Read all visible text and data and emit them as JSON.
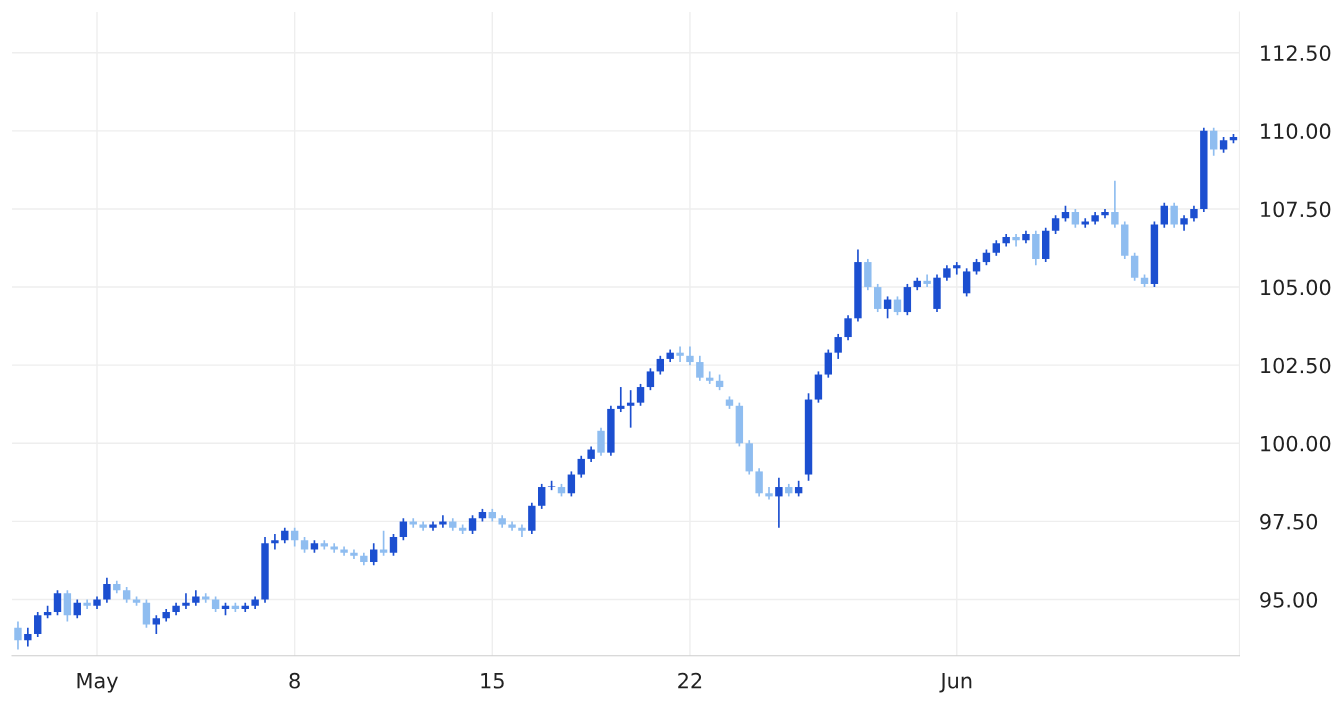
{
  "chart_data": {
    "type": "candlestick",
    "categories": [
      null,
      null,
      null,
      null,
      null,
      null,
      null,
      null,
      "May",
      null,
      null,
      null,
      null,
      null,
      null,
      null,
      null,
      null,
      null,
      null,
      null,
      null,
      null,
      null,
      null,
      null,
      null,
      null,
      "8",
      null,
      null,
      null,
      null,
      null,
      null,
      null,
      null,
      null,
      null,
      null,
      null,
      null,
      null,
      null,
      null,
      null,
      null,
      null,
      "15",
      null,
      null,
      null,
      null,
      null,
      null,
      null,
      null,
      null,
      null,
      null,
      null,
      null,
      null,
      null,
      null,
      null,
      null,
      null,
      "22",
      null,
      null,
      null,
      null,
      null,
      null,
      null,
      null,
      null,
      null,
      null,
      null,
      null,
      null,
      null,
      null,
      null,
      null,
      null,
      null,
      null,
      null,
      null,
      null,
      null,
      null,
      "Jun",
      null,
      null,
      null,
      null,
      null,
      null,
      null,
      null,
      null,
      null,
      null,
      null,
      null,
      null,
      null,
      null,
      null,
      null,
      null,
      null,
      null,
      null,
      null,
      null,
      null,
      null,
      null,
      null
    ],
    "ohlc": [
      [
        94.1,
        94.3,
        93.4,
        93.7
      ],
      [
        93.7,
        94.1,
        93.5,
        93.9
      ],
      [
        93.9,
        94.6,
        93.8,
        94.5
      ],
      [
        94.5,
        94.8,
        94.4,
        94.6
      ],
      [
        94.6,
        95.3,
        94.5,
        95.2
      ],
      [
        95.2,
        95.3,
        94.3,
        94.5
      ],
      [
        94.5,
        95.0,
        94.4,
        94.9
      ],
      [
        94.9,
        95.0,
        94.7,
        94.8
      ],
      [
        94.8,
        95.1,
        94.7,
        95.0
      ],
      [
        95.0,
        95.7,
        94.9,
        95.5
      ],
      [
        95.5,
        95.6,
        95.2,
        95.3
      ],
      [
        95.3,
        95.4,
        94.9,
        95.0
      ],
      [
        95.0,
        95.1,
        94.8,
        94.9
      ],
      [
        94.9,
        95.0,
        94.1,
        94.2
      ],
      [
        94.2,
        94.5,
        93.9,
        94.4
      ],
      [
        94.4,
        94.7,
        94.3,
        94.6
      ],
      [
        94.6,
        94.9,
        94.5,
        94.8
      ],
      [
        94.8,
        95.2,
        94.7,
        94.9
      ],
      [
        94.9,
        95.3,
        94.8,
        95.1
      ],
      [
        95.1,
        95.2,
        94.9,
        95.0
      ],
      [
        95.0,
        95.1,
        94.6,
        94.7
      ],
      [
        94.7,
        94.9,
        94.5,
        94.8
      ],
      [
        94.8,
        94.9,
        94.6,
        94.7
      ],
      [
        94.7,
        94.9,
        94.6,
        94.8
      ],
      [
        94.8,
        95.1,
        94.7,
        95.0
      ],
      [
        95.0,
        97.0,
        94.9,
        96.8
      ],
      [
        96.8,
        97.1,
        96.6,
        96.9
      ],
      [
        96.9,
        97.3,
        96.8,
        97.2
      ],
      [
        97.2,
        97.3,
        96.7,
        96.9
      ],
      [
        96.9,
        97.0,
        96.5,
        96.6
      ],
      [
        96.6,
        96.9,
        96.5,
        96.8
      ],
      [
        96.8,
        96.9,
        96.6,
        96.7
      ],
      [
        96.7,
        96.8,
        96.5,
        96.6
      ],
      [
        96.6,
        96.7,
        96.4,
        96.5
      ],
      [
        96.5,
        96.6,
        96.3,
        96.4
      ],
      [
        96.4,
        96.5,
        96.1,
        96.2
      ],
      [
        96.2,
        96.8,
        96.1,
        96.6
      ],
      [
        96.6,
        97.2,
        96.4,
        96.5
      ],
      [
        96.5,
        97.1,
        96.4,
        97.0
      ],
      [
        97.0,
        97.6,
        96.9,
        97.5
      ],
      [
        97.5,
        97.6,
        97.3,
        97.4
      ],
      [
        97.4,
        97.5,
        97.2,
        97.3
      ],
      [
        97.3,
        97.5,
        97.2,
        97.4
      ],
      [
        97.4,
        97.7,
        97.3,
        97.5
      ],
      [
        97.5,
        97.6,
        97.2,
        97.3
      ],
      [
        97.3,
        97.4,
        97.1,
        97.2
      ],
      [
        97.2,
        97.7,
        97.1,
        97.6
      ],
      [
        97.6,
        97.9,
        97.5,
        97.8
      ],
      [
        97.8,
        97.9,
        97.5,
        97.6
      ],
      [
        97.6,
        97.7,
        97.3,
        97.4
      ],
      [
        97.4,
        97.5,
        97.2,
        97.3
      ],
      [
        97.3,
        97.4,
        97.0,
        97.2
      ],
      [
        97.2,
        98.1,
        97.1,
        98.0
      ],
      [
        98.0,
        98.7,
        97.9,
        98.6
      ],
      [
        98.6,
        98.8,
        98.5,
        98.6
      ],
      [
        98.6,
        98.7,
        98.3,
        98.4
      ],
      [
        98.4,
        99.1,
        98.3,
        99.0
      ],
      [
        99.0,
        99.6,
        98.9,
        99.5
      ],
      [
        99.5,
        99.9,
        99.4,
        99.8
      ],
      [
        100.4,
        100.5,
        99.6,
        99.7
      ],
      [
        99.7,
        101.2,
        99.6,
        101.1
      ],
      [
        101.1,
        101.8,
        101.0,
        101.2
      ],
      [
        101.2,
        101.7,
        100.5,
        101.3
      ],
      [
        101.3,
        101.9,
        101.2,
        101.8
      ],
      [
        101.8,
        102.4,
        101.7,
        102.3
      ],
      [
        102.3,
        102.8,
        102.2,
        102.7
      ],
      [
        102.7,
        103.0,
        102.6,
        102.9
      ],
      [
        102.9,
        103.1,
        102.6,
        102.8
      ],
      [
        102.8,
        103.1,
        102.5,
        102.6
      ],
      [
        102.6,
        102.8,
        102.0,
        102.1
      ],
      [
        102.1,
        102.3,
        101.9,
        102.0
      ],
      [
        102.0,
        102.2,
        101.7,
        101.8
      ],
      [
        101.4,
        101.5,
        101.1,
        101.2
      ],
      [
        101.2,
        101.3,
        99.9,
        100.0
      ],
      [
        100.0,
        100.1,
        99.0,
        99.1
      ],
      [
        99.1,
        99.2,
        98.3,
        98.4
      ],
      [
        98.4,
        98.6,
        98.2,
        98.3
      ],
      [
        98.3,
        98.9,
        97.3,
        98.6
      ],
      [
        98.6,
        98.7,
        98.3,
        98.4
      ],
      [
        98.4,
        98.8,
        98.3,
        98.6
      ],
      [
        99.0,
        101.6,
        98.8,
        101.4
      ],
      [
        101.4,
        102.3,
        101.3,
        102.2
      ],
      [
        102.2,
        103.0,
        102.1,
        102.9
      ],
      [
        102.9,
        103.5,
        102.7,
        103.4
      ],
      [
        103.4,
        104.1,
        103.3,
        104.0
      ],
      [
        104.0,
        106.2,
        103.9,
        105.8
      ],
      [
        105.8,
        105.9,
        104.9,
        105.0
      ],
      [
        105.0,
        105.1,
        104.2,
        104.3
      ],
      [
        104.3,
        104.7,
        104.0,
        104.6
      ],
      [
        104.6,
        104.7,
        104.1,
        104.2
      ],
      [
        104.2,
        105.1,
        104.1,
        105.0
      ],
      [
        105.0,
        105.3,
        104.9,
        105.2
      ],
      [
        105.2,
        105.4,
        105.0,
        105.1
      ],
      [
        104.3,
        105.4,
        104.2,
        105.3
      ],
      [
        105.3,
        105.7,
        105.2,
        105.6
      ],
      [
        105.6,
        105.8,
        105.4,
        105.7
      ],
      [
        104.8,
        105.6,
        104.7,
        105.5
      ],
      [
        105.5,
        105.9,
        105.4,
        105.8
      ],
      [
        105.8,
        106.2,
        105.7,
        106.1
      ],
      [
        106.1,
        106.5,
        106.0,
        106.4
      ],
      [
        106.4,
        106.7,
        106.3,
        106.6
      ],
      [
        106.6,
        106.7,
        106.3,
        106.5
      ],
      [
        106.5,
        106.8,
        106.4,
        106.7
      ],
      [
        106.7,
        106.8,
        105.7,
        105.9
      ],
      [
        105.9,
        106.9,
        105.8,
        106.8
      ],
      [
        106.8,
        107.3,
        106.7,
        107.2
      ],
      [
        107.2,
        107.6,
        107.1,
        107.4
      ],
      [
        107.4,
        107.5,
        106.9,
        107.0
      ],
      [
        107.0,
        107.2,
        106.9,
        107.1
      ],
      [
        107.1,
        107.4,
        107.0,
        107.3
      ],
      [
        107.3,
        107.5,
        107.2,
        107.4
      ],
      [
        107.4,
        108.4,
        106.9,
        107.0
      ],
      [
        107.0,
        107.1,
        105.9,
        106.0
      ],
      [
        106.0,
        106.1,
        105.2,
        105.3
      ],
      [
        105.3,
        105.4,
        105.0,
        105.1
      ],
      [
        105.1,
        107.1,
        105.0,
        107.0
      ],
      [
        107.0,
        107.7,
        106.9,
        107.6
      ],
      [
        107.6,
        107.7,
        106.9,
        107.0
      ],
      [
        107.0,
        107.3,
        106.8,
        107.2
      ],
      [
        107.2,
        107.6,
        107.1,
        107.5
      ],
      [
        107.5,
        110.1,
        107.4,
        110.0
      ],
      [
        110.0,
        110.1,
        109.2,
        109.4
      ],
      [
        109.4,
        109.8,
        109.3,
        109.7
      ],
      [
        109.7,
        109.9,
        109.6,
        109.8
      ]
    ],
    "colors": [
      "#8fbdf0",
      "#1c4fd0",
      "#1c4fd0",
      "#1c4fd0",
      "#1c4fd0",
      "#8fbdf0",
      "#1c4fd0",
      "#8fbdf0",
      "#1c4fd0",
      "#1c4fd0",
      "#8fbdf0",
      "#8fbdf0",
      "#8fbdf0",
      "#8fbdf0",
      "#1c4fd0",
      "#1c4fd0",
      "#1c4fd0",
      "#1c4fd0",
      "#1c4fd0",
      "#8fbdf0",
      "#8fbdf0",
      "#1c4fd0",
      "#8fbdf0",
      "#1c4fd0",
      "#1c4fd0",
      "#1c4fd0",
      "#1c4fd0",
      "#1c4fd0",
      "#8fbdf0",
      "#8fbdf0",
      "#1c4fd0",
      "#8fbdf0",
      "#8fbdf0",
      "#8fbdf0",
      "#8fbdf0",
      "#8fbdf0",
      "#1c4fd0",
      "#8fbdf0",
      "#1c4fd0",
      "#1c4fd0",
      "#8fbdf0",
      "#8fbdf0",
      "#1c4fd0",
      "#1c4fd0",
      "#8fbdf0",
      "#8fbdf0",
      "#1c4fd0",
      "#1c4fd0",
      "#8fbdf0",
      "#8fbdf0",
      "#8fbdf0",
      "#8fbdf0",
      "#1c4fd0",
      "#1c4fd0",
      "#1c4fd0",
      "#8fbdf0",
      "#1c4fd0",
      "#1c4fd0",
      "#1c4fd0",
      "#8fbdf0",
      "#1c4fd0",
      "#1c4fd0",
      "#1c4fd0",
      "#1c4fd0",
      "#1c4fd0",
      "#1c4fd0",
      "#1c4fd0",
      "#8fbdf0",
      "#8fbdf0",
      "#8fbdf0",
      "#8fbdf0",
      "#8fbdf0",
      "#8fbdf0",
      "#8fbdf0",
      "#8fbdf0",
      "#8fbdf0",
      "#8fbdf0",
      "#1c4fd0",
      "#8fbdf0",
      "#1c4fd0",
      "#1c4fd0",
      "#1c4fd0",
      "#1c4fd0",
      "#1c4fd0",
      "#1c4fd0",
      "#1c4fd0",
      "#8fbdf0",
      "#8fbdf0",
      "#1c4fd0",
      "#8fbdf0",
      "#1c4fd0",
      "#1c4fd0",
      "#8fbdf0",
      "#1c4fd0",
      "#1c4fd0",
      "#1c4fd0",
      "#1c4fd0",
      "#1c4fd0",
      "#1c4fd0",
      "#1c4fd0",
      "#1c4fd0",
      "#8fbdf0",
      "#1c4fd0",
      "#8fbdf0",
      "#1c4fd0",
      "#1c4fd0",
      "#1c4fd0",
      "#8fbdf0",
      "#1c4fd0",
      "#1c4fd0",
      "#1c4fd0",
      "#8fbdf0",
      "#8fbdf0",
      "#8fbdf0",
      "#8fbdf0",
      "#1c4fd0",
      "#1c4fd0",
      "#8fbdf0",
      "#1c4fd0",
      "#1c4fd0",
      "#1c4fd0",
      "#8fbdf0",
      "#1c4fd0",
      "#1c4fd0"
    ],
    "ylim": [
      93.2,
      113.8
    ],
    "yticks": [
      {
        "value": 95,
        "label": "95.00"
      },
      {
        "value": 97.5,
        "label": "97.50"
      },
      {
        "value": 100,
        "label": "100.00"
      },
      {
        "value": 102.5,
        "label": "102.50"
      },
      {
        "value": 105,
        "label": "105.00"
      },
      {
        "value": 107.5,
        "label": "107.50"
      },
      {
        "value": 110,
        "label": "110.00"
      },
      {
        "value": 112.5,
        "label": "112.50"
      }
    ],
    "grid": true
  }
}
